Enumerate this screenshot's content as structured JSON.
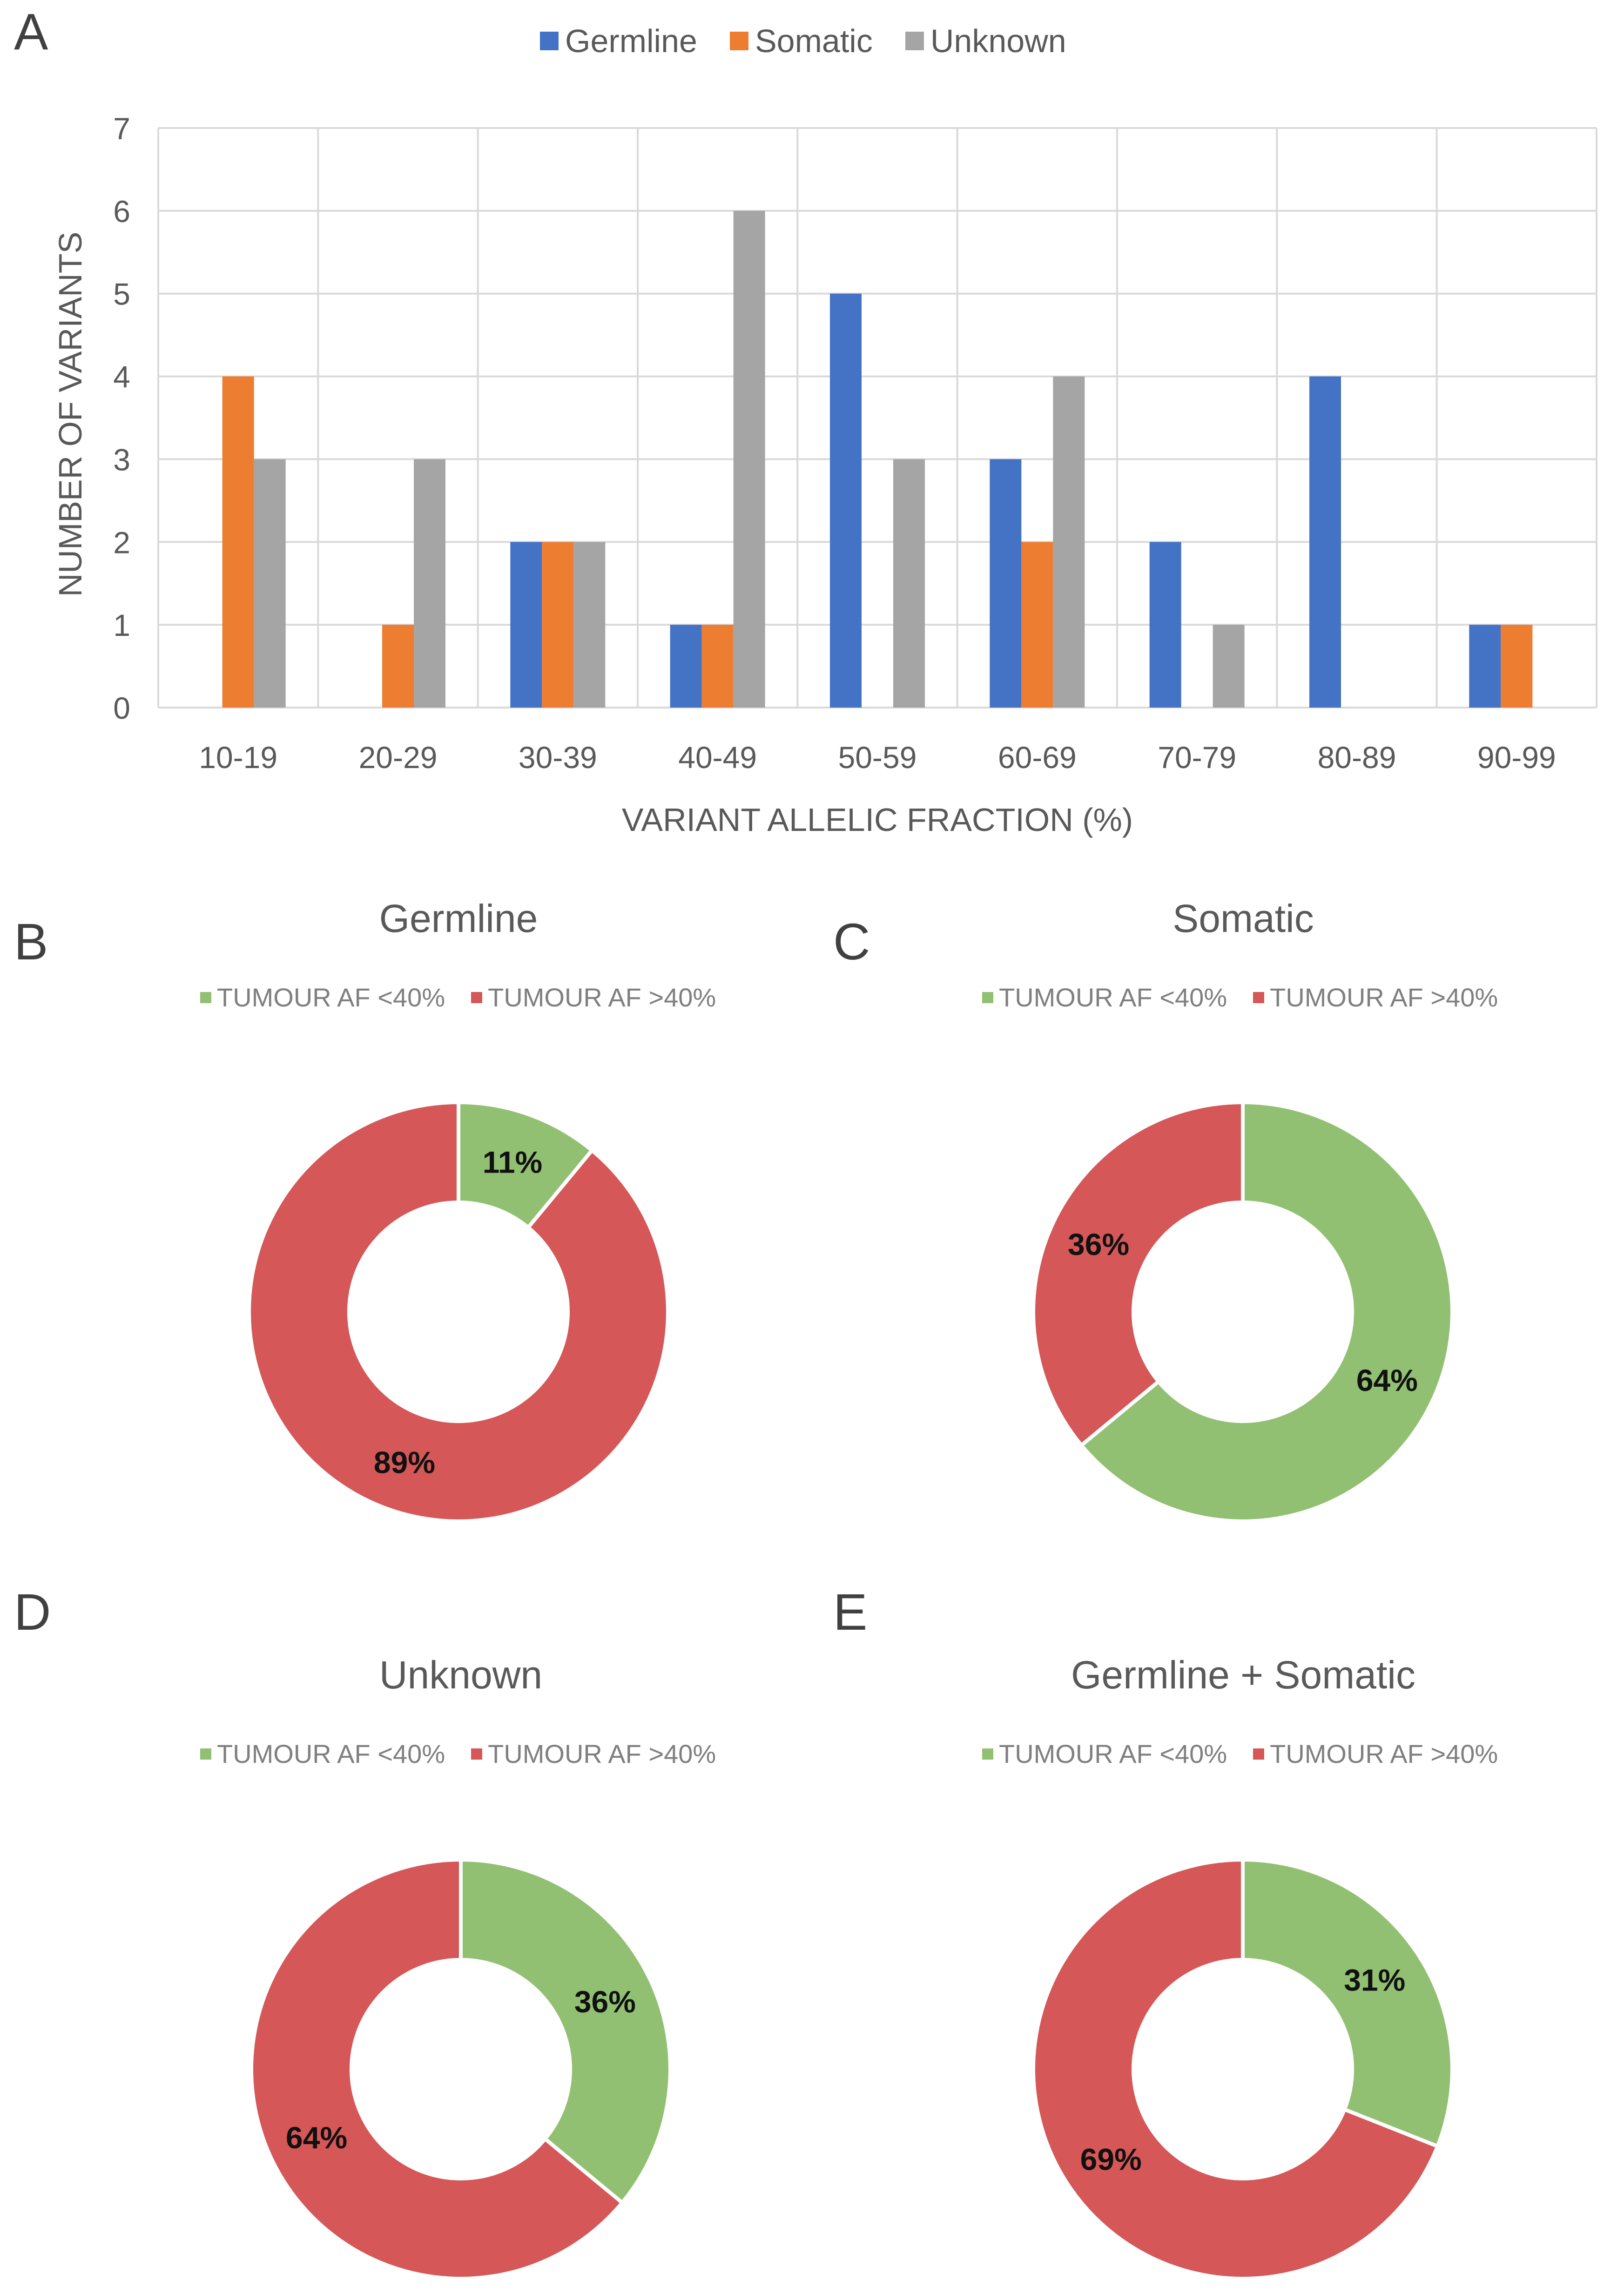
{
  "panels": {
    "a": "A",
    "b": "B",
    "c": "C",
    "d": "D",
    "e": "E"
  },
  "colors": {
    "germline": "#4472C4",
    "somatic": "#ED7D31",
    "unknown": "#A5A5A5",
    "af_low": "#92C072",
    "af_high": "#D55757"
  },
  "chart_data": [
    {
      "type": "bar",
      "title": "",
      "xlabel": "VARIANT ALLELIC FRACTION (%)",
      "ylabel": "NUMBER OF VARIANTS",
      "ylim": [
        0,
        7
      ],
      "yticks": [
        "0",
        "1",
        "2",
        "3",
        "4",
        "5",
        "6",
        "7"
      ],
      "grid": true,
      "legend_position": "top",
      "categories": [
        "10-19",
        "20-29",
        "30-39",
        "40-49",
        "50-59",
        "60-69",
        "70-79",
        "80-89",
        "90-99"
      ],
      "series": [
        {
          "name": "Germline",
          "values": [
            0,
            0,
            2,
            1,
            5,
            3,
            2,
            4,
            1
          ]
        },
        {
          "name": "Somatic",
          "values": [
            4,
            1,
            2,
            1,
            0,
            2,
            0,
            0,
            1
          ]
        },
        {
          "name": "Unknown",
          "values": [
            3,
            3,
            2,
            6,
            3,
            4,
            1,
            0,
            0
          ]
        }
      ]
    },
    {
      "type": "pie",
      "title": "Germline",
      "legend": [
        "TUMOUR AF <40%",
        "TUMOUR AF >40%"
      ],
      "values": [
        11,
        89
      ],
      "labels": [
        "11%",
        "89%"
      ]
    },
    {
      "type": "pie",
      "title": "Somatic",
      "legend": [
        "TUMOUR AF <40%",
        "TUMOUR AF >40%"
      ],
      "values": [
        64,
        36
      ],
      "labels": [
        "64%",
        "36%"
      ]
    },
    {
      "type": "pie",
      "title": "Unknown",
      "legend": [
        "TUMOUR AF <40%",
        "TUMOUR AF >40%"
      ],
      "values": [
        36,
        64
      ],
      "labels": [
        "36%",
        "64%"
      ]
    },
    {
      "type": "pie",
      "title": "Germline + Somatic",
      "legend": [
        "TUMOUR AF <40%",
        "TUMOUR AF >40%"
      ],
      "values": [
        31,
        69
      ],
      "labels": [
        "31%",
        "69%"
      ]
    }
  ]
}
